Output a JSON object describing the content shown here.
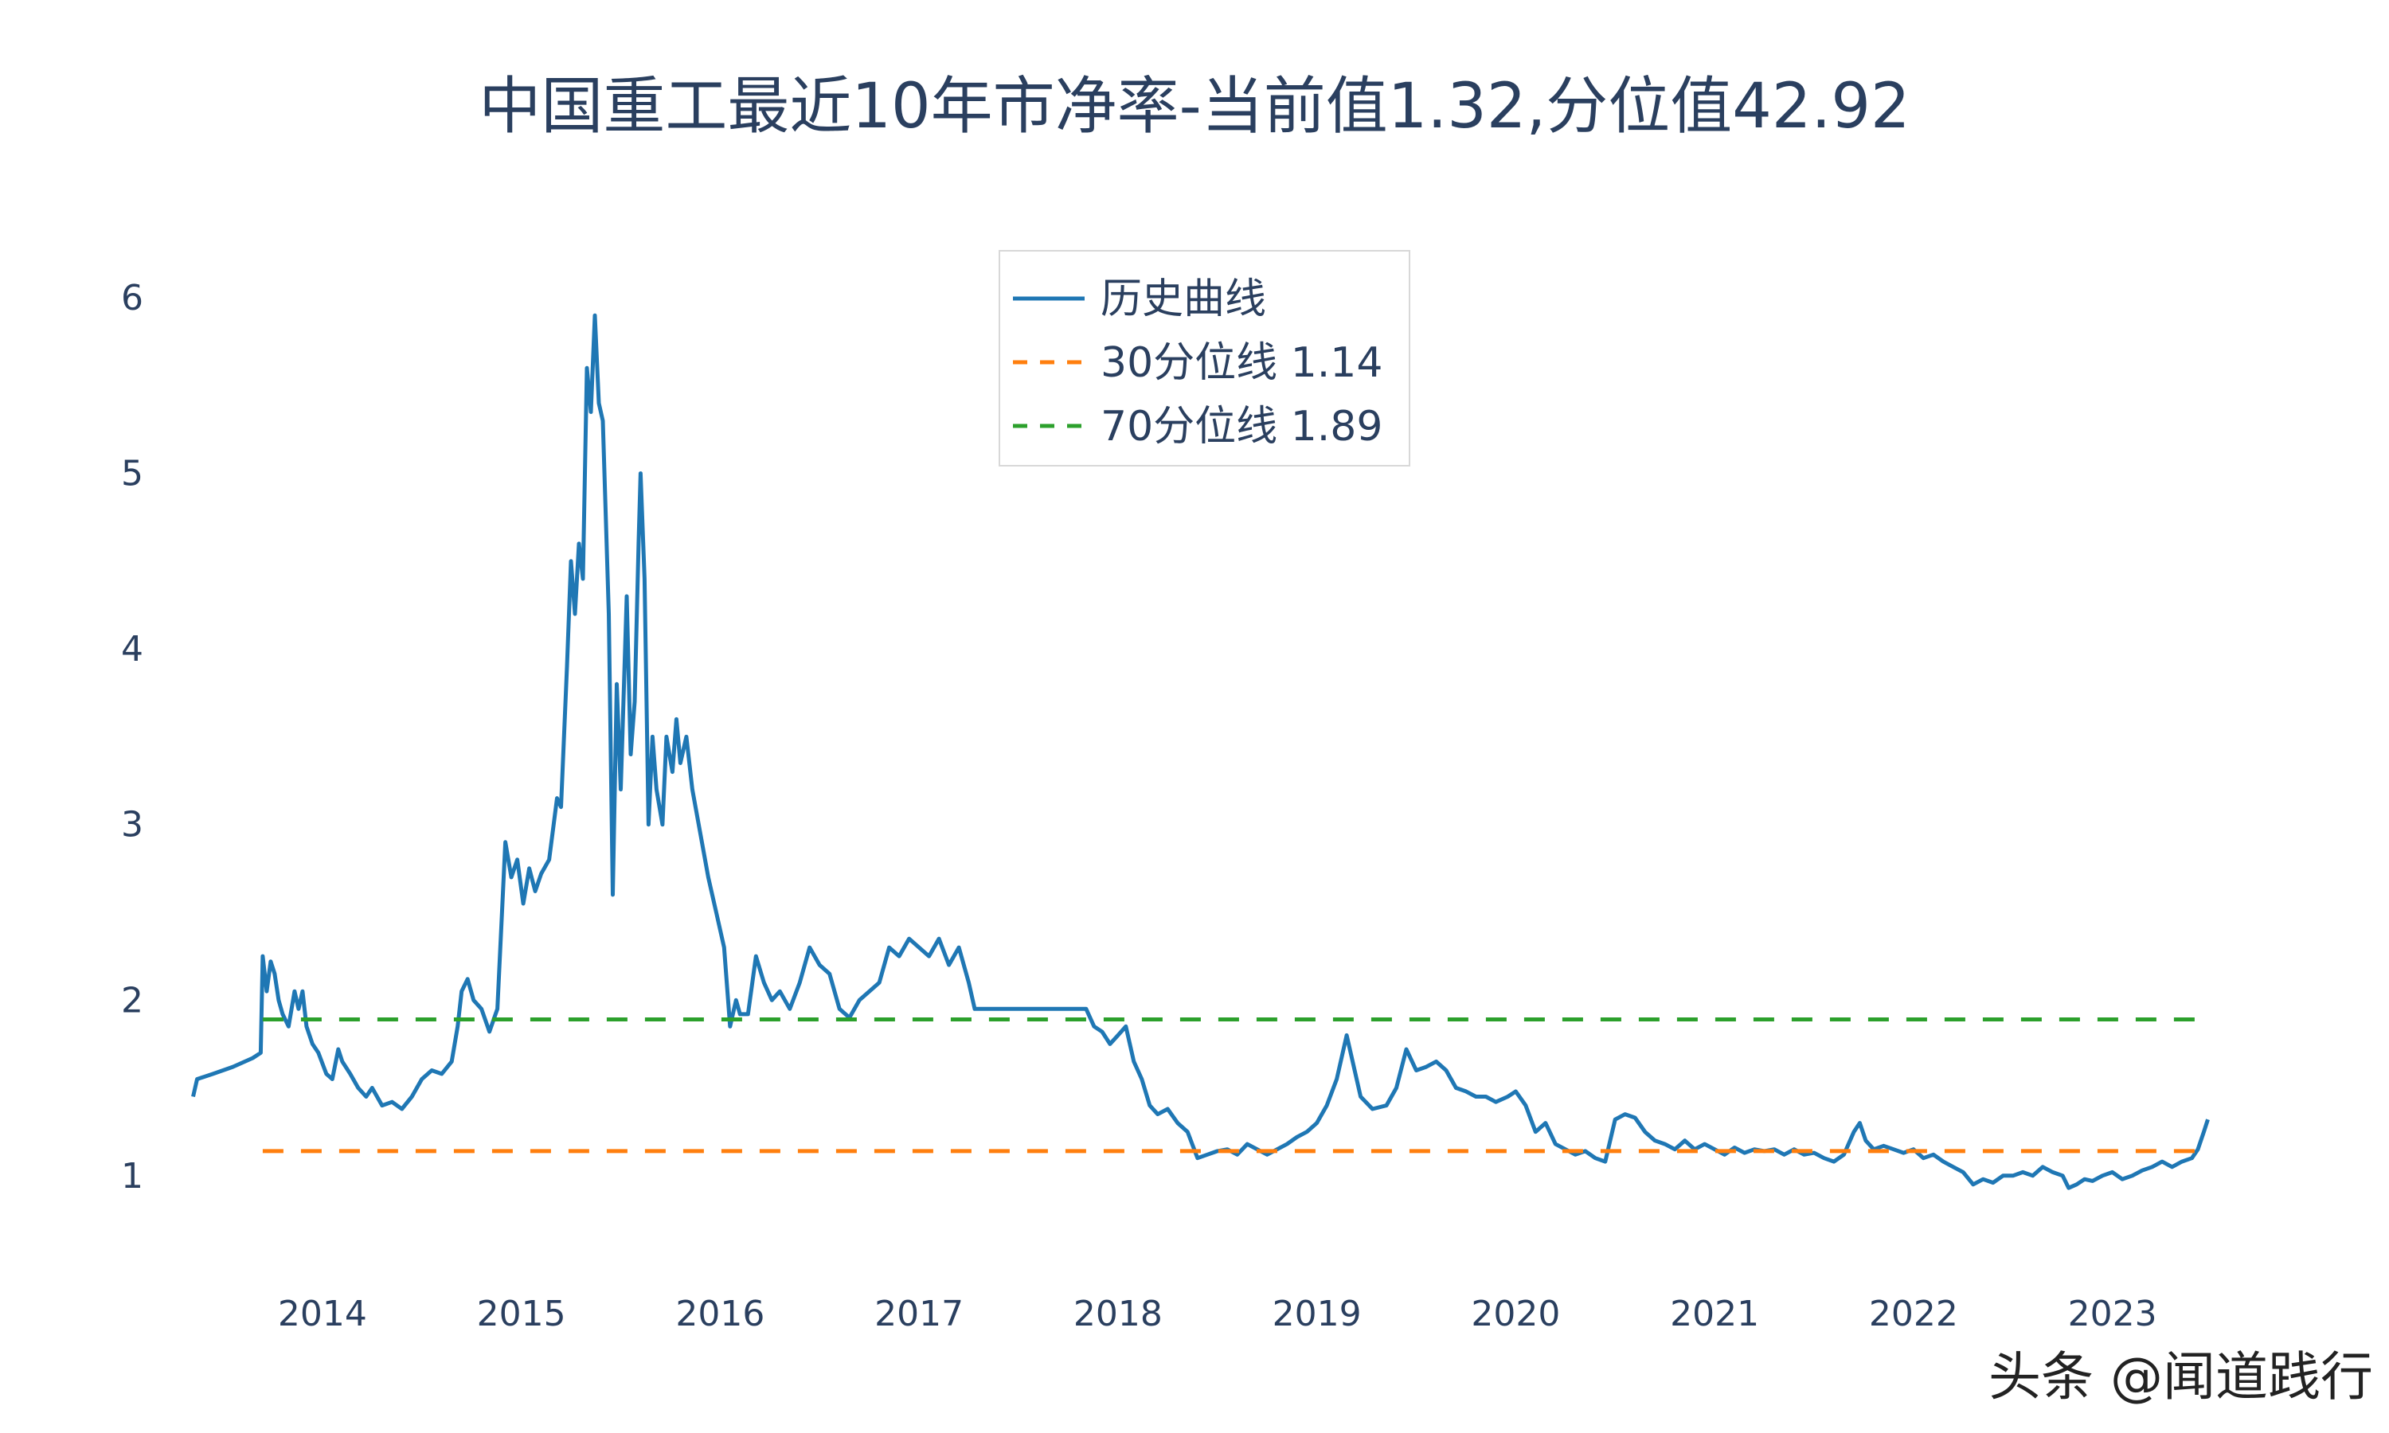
{
  "chart_data": {
    "type": "line",
    "title": "中国重工最近10年市净率-当前值1.32,分位值42.92",
    "ylim": [
      0.6,
      6.2
    ],
    "y_ticks": [
      1,
      2,
      3,
      4,
      5,
      6
    ],
    "x_ticks": [
      "2014",
      "2015",
      "2016",
      "2017",
      "2018",
      "2019",
      "2020",
      "2021",
      "2022",
      "2023"
    ],
    "x_range": [
      2013.34,
      2023.55
    ],
    "legend_position": "top-center",
    "grid": false,
    "series": [
      {
        "name": "历史曲线",
        "color": "#1f77b4",
        "style": "solid",
        "points": [
          [
            2013.35,
            1.45
          ],
          [
            2013.37,
            1.55
          ],
          [
            2013.45,
            1.58
          ],
          [
            2013.55,
            1.62
          ],
          [
            2013.65,
            1.67
          ],
          [
            2013.69,
            1.7
          ],
          [
            2013.7,
            2.25
          ],
          [
            2013.72,
            2.05
          ],
          [
            2013.74,
            2.22
          ],
          [
            2013.76,
            2.15
          ],
          [
            2013.78,
            2.0
          ],
          [
            2013.8,
            1.92
          ],
          [
            2013.83,
            1.85
          ],
          [
            2013.86,
            2.05
          ],
          [
            2013.88,
            1.95
          ],
          [
            2013.9,
            2.05
          ],
          [
            2013.92,
            1.85
          ],
          [
            2013.95,
            1.75
          ],
          [
            2013.98,
            1.7
          ],
          [
            2014.02,
            1.58
          ],
          [
            2014.05,
            1.55
          ],
          [
            2014.08,
            1.72
          ],
          [
            2014.1,
            1.65
          ],
          [
            2014.14,
            1.58
          ],
          [
            2014.18,
            1.5
          ],
          [
            2014.22,
            1.45
          ],
          [
            2014.25,
            1.5
          ],
          [
            2014.3,
            1.4
          ],
          [
            2014.35,
            1.42
          ],
          [
            2014.4,
            1.38
          ],
          [
            2014.45,
            1.45
          ],
          [
            2014.5,
            1.55
          ],
          [
            2014.55,
            1.6
          ],
          [
            2014.6,
            1.58
          ],
          [
            2014.65,
            1.65
          ],
          [
            2014.68,
            1.85
          ],
          [
            2014.7,
            2.05
          ],
          [
            2014.73,
            2.12
          ],
          [
            2014.76,
            2.0
          ],
          [
            2014.8,
            1.95
          ],
          [
            2014.84,
            1.82
          ],
          [
            2014.88,
            1.95
          ],
          [
            2014.92,
            2.9
          ],
          [
            2014.95,
            2.7
          ],
          [
            2014.98,
            2.8
          ],
          [
            2015.01,
            2.55
          ],
          [
            2015.04,
            2.75
          ],
          [
            2015.07,
            2.62
          ],
          [
            2015.1,
            2.72
          ],
          [
            2015.14,
            2.8
          ],
          [
            2015.18,
            3.15
          ],
          [
            2015.2,
            3.1
          ],
          [
            2015.23,
            3.9
          ],
          [
            2015.25,
            4.5
          ],
          [
            2015.27,
            4.2
          ],
          [
            2015.29,
            4.6
          ],
          [
            2015.31,
            4.4
          ],
          [
            2015.33,
            5.6
          ],
          [
            2015.35,
            5.35
          ],
          [
            2015.37,
            5.9
          ],
          [
            2015.39,
            5.4
          ],
          [
            2015.41,
            5.3
          ],
          [
            2015.44,
            4.2
          ],
          [
            2015.46,
            2.6
          ],
          [
            2015.48,
            3.8
          ],
          [
            2015.5,
            3.2
          ],
          [
            2015.53,
            4.3
          ],
          [
            2015.55,
            3.4
          ],
          [
            2015.57,
            3.7
          ],
          [
            2015.59,
            4.6
          ],
          [
            2015.6,
            5.0
          ],
          [
            2015.62,
            4.4
          ],
          [
            2015.64,
            3.0
          ],
          [
            2015.66,
            3.5
          ],
          [
            2015.68,
            3.2
          ],
          [
            2015.71,
            3.0
          ],
          [
            2015.73,
            3.5
          ],
          [
            2015.76,
            3.3
          ],
          [
            2015.78,
            3.6
          ],
          [
            2015.8,
            3.35
          ],
          [
            2015.83,
            3.5
          ],
          [
            2015.86,
            3.2
          ],
          [
            2015.9,
            2.95
          ],
          [
            2015.94,
            2.7
          ],
          [
            2015.98,
            2.5
          ],
          [
            2016.02,
            2.3
          ],
          [
            2016.05,
            1.85
          ],
          [
            2016.08,
            2.0
          ],
          [
            2016.1,
            1.92
          ],
          [
            2016.14,
            1.92
          ],
          [
            2016.18,
            2.25
          ],
          [
            2016.22,
            2.1
          ],
          [
            2016.26,
            2.0
          ],
          [
            2016.3,
            2.05
          ],
          [
            2016.35,
            1.95
          ],
          [
            2016.4,
            2.1
          ],
          [
            2016.45,
            2.3
          ],
          [
            2016.5,
            2.2
          ],
          [
            2016.55,
            2.15
          ],
          [
            2016.6,
            1.95
          ],
          [
            2016.65,
            1.9
          ],
          [
            2016.7,
            2.0
          ],
          [
            2016.75,
            2.05
          ],
          [
            2016.8,
            2.1
          ],
          [
            2016.85,
            2.3
          ],
          [
            2016.9,
            2.25
          ],
          [
            2016.95,
            2.35
          ],
          [
            2017.0,
            2.3
          ],
          [
            2017.05,
            2.25
          ],
          [
            2017.1,
            2.35
          ],
          [
            2017.15,
            2.2
          ],
          [
            2017.2,
            2.3
          ],
          [
            2017.25,
            2.1
          ],
          [
            2017.28,
            1.95
          ],
          [
            2017.4,
            1.95
          ],
          [
            2017.55,
            1.95
          ],
          [
            2017.7,
            1.95
          ],
          [
            2017.84,
            1.95
          ],
          [
            2017.88,
            1.85
          ],
          [
            2017.92,
            1.82
          ],
          [
            2017.96,
            1.75
          ],
          [
            2018.0,
            1.8
          ],
          [
            2018.04,
            1.85
          ],
          [
            2018.08,
            1.65
          ],
          [
            2018.12,
            1.55
          ],
          [
            2018.16,
            1.4
          ],
          [
            2018.2,
            1.35
          ],
          [
            2018.25,
            1.38
          ],
          [
            2018.3,
            1.3
          ],
          [
            2018.35,
            1.25
          ],
          [
            2018.4,
            1.1
          ],
          [
            2018.45,
            1.12
          ],
          [
            2018.5,
            1.14
          ],
          [
            2018.55,
            1.15
          ],
          [
            2018.6,
            1.12
          ],
          [
            2018.65,
            1.18
          ],
          [
            2018.7,
            1.15
          ],
          [
            2018.75,
            1.12
          ],
          [
            2018.8,
            1.15
          ],
          [
            2018.85,
            1.18
          ],
          [
            2018.9,
            1.22
          ],
          [
            2018.95,
            1.25
          ],
          [
            2019.0,
            1.3
          ],
          [
            2019.05,
            1.4
          ],
          [
            2019.1,
            1.55
          ],
          [
            2019.15,
            1.8
          ],
          [
            2019.18,
            1.65
          ],
          [
            2019.22,
            1.45
          ],
          [
            2019.28,
            1.38
          ],
          [
            2019.35,
            1.4
          ],
          [
            2019.4,
            1.5
          ],
          [
            2019.45,
            1.72
          ],
          [
            2019.5,
            1.6
          ],
          [
            2019.55,
            1.62
          ],
          [
            2019.6,
            1.65
          ],
          [
            2019.65,
            1.6
          ],
          [
            2019.7,
            1.5
          ],
          [
            2019.75,
            1.48
          ],
          [
            2019.8,
            1.45
          ],
          [
            2019.85,
            1.45
          ],
          [
            2019.9,
            1.42
          ],
          [
            2019.96,
            1.45
          ],
          [
            2020.0,
            1.48
          ],
          [
            2020.05,
            1.4
          ],
          [
            2020.1,
            1.25
          ],
          [
            2020.15,
            1.3
          ],
          [
            2020.2,
            1.18
          ],
          [
            2020.25,
            1.15
          ],
          [
            2020.3,
            1.12
          ],
          [
            2020.35,
            1.14
          ],
          [
            2020.4,
            1.1
          ],
          [
            2020.45,
            1.08
          ],
          [
            2020.5,
            1.32
          ],
          [
            2020.55,
            1.35
          ],
          [
            2020.6,
            1.33
          ],
          [
            2020.65,
            1.25
          ],
          [
            2020.7,
            1.2
          ],
          [
            2020.75,
            1.18
          ],
          [
            2020.8,
            1.15
          ],
          [
            2020.85,
            1.2
          ],
          [
            2020.9,
            1.15
          ],
          [
            2020.95,
            1.18
          ],
          [
            2021.0,
            1.15
          ],
          [
            2021.05,
            1.12
          ],
          [
            2021.1,
            1.16
          ],
          [
            2021.15,
            1.13
          ],
          [
            2021.2,
            1.15
          ],
          [
            2021.25,
            1.14
          ],
          [
            2021.3,
            1.15
          ],
          [
            2021.35,
            1.12
          ],
          [
            2021.4,
            1.15
          ],
          [
            2021.45,
            1.12
          ],
          [
            2021.5,
            1.13
          ],
          [
            2021.55,
            1.1
          ],
          [
            2021.6,
            1.08
          ],
          [
            2021.65,
            1.12
          ],
          [
            2021.7,
            1.25
          ],
          [
            2021.73,
            1.3
          ],
          [
            2021.76,
            1.2
          ],
          [
            2021.8,
            1.15
          ],
          [
            2021.85,
            1.17
          ],
          [
            2021.9,
            1.15
          ],
          [
            2021.95,
            1.13
          ],
          [
            2022.0,
            1.15
          ],
          [
            2022.05,
            1.1
          ],
          [
            2022.1,
            1.12
          ],
          [
            2022.15,
            1.08
          ],
          [
            2022.2,
            1.05
          ],
          [
            2022.25,
            1.02
          ],
          [
            2022.3,
            0.95
          ],
          [
            2022.35,
            0.98
          ],
          [
            2022.4,
            0.96
          ],
          [
            2022.45,
            1.0
          ],
          [
            2022.5,
            1.0
          ],
          [
            2022.55,
            1.02
          ],
          [
            2022.6,
            1.0
          ],
          [
            2022.65,
            1.05
          ],
          [
            2022.7,
            1.02
          ],
          [
            2022.75,
            1.0
          ],
          [
            2022.78,
            0.93
          ],
          [
            2022.82,
            0.95
          ],
          [
            2022.86,
            0.98
          ],
          [
            2022.9,
            0.97
          ],
          [
            2022.95,
            1.0
          ],
          [
            2023.0,
            1.02
          ],
          [
            2023.05,
            0.98
          ],
          [
            2023.1,
            1.0
          ],
          [
            2023.15,
            1.03
          ],
          [
            2023.2,
            1.05
          ],
          [
            2023.25,
            1.08
          ],
          [
            2023.3,
            1.05
          ],
          [
            2023.35,
            1.08
          ],
          [
            2023.4,
            1.1
          ],
          [
            2023.43,
            1.15
          ],
          [
            2023.46,
            1.25
          ],
          [
            2023.48,
            1.32
          ]
        ]
      },
      {
        "name": "30分位线 1.14",
        "color": "#ff7f0e",
        "style": "dash",
        "value": 1.14,
        "x_range": [
          2013.7,
          2023.46
        ]
      },
      {
        "name": "70分位线 1.89",
        "color": "#2ca02c",
        "style": "dash",
        "value": 1.89,
        "x_range": [
          2013.7,
          2023.46
        ]
      }
    ]
  },
  "watermark": "头条 @闻道践行"
}
